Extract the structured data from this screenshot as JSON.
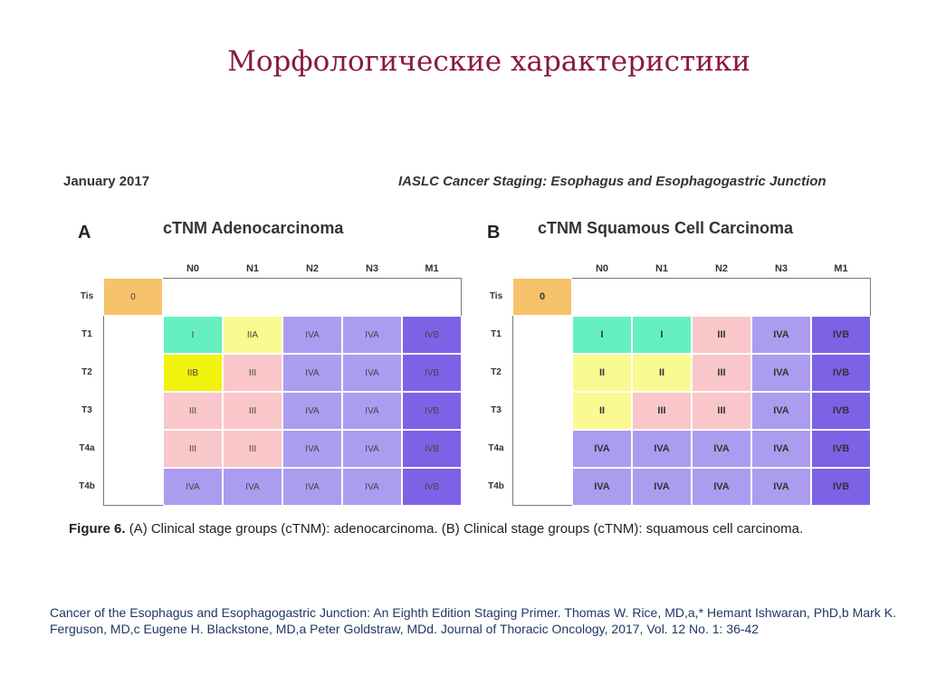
{
  "slide": {
    "title": "Морфологические характеристики"
  },
  "figure": {
    "header_left": "January 2017",
    "header_right": "IASLC Cancer Staging: Esophagus and Esophagogastric Junction",
    "caption_label": "Figure 6.",
    "caption_text": "(A) Clinical stage groups (cTNM): adenocarcinoma. (B) Clinical stage groups (cTNM): squamous cell carcinoma.",
    "colors": {
      "0": "#f6c26b",
      "I": "#66f0bf",
      "IIA": "#fafa92",
      "II": "#fafa92",
      "IIB": "#f2f20f",
      "III": "#f9c7c9",
      "IVA": "#ac9cf0",
      "IVB": "#7e62e6"
    },
    "columns": [
      "N0",
      "N1",
      "N2",
      "N3",
      "M1"
    ],
    "rows": [
      "T1",
      "T2",
      "T3",
      "T4a",
      "T4b"
    ],
    "tis_label": "Tis",
    "panels": [
      {
        "letter": "A",
        "title": "cTNM Adenocarcinoma",
        "tis_value": "0",
        "cells": [
          [
            "I",
            "IIA",
            "IVA",
            "IVA",
            "IVB"
          ],
          [
            "IIB",
            "III",
            "IVA",
            "IVA",
            "IVB"
          ],
          [
            "III",
            "III",
            "IVA",
            "IVA",
            "IVB"
          ],
          [
            "III",
            "III",
            "IVA",
            "IVA",
            "IVB"
          ],
          [
            "IVA",
            "IVA",
            "IVA",
            "IVA",
            "IVB"
          ]
        ]
      },
      {
        "letter": "B",
        "title": "cTNM Squamous Cell Carcinoma",
        "tis_value": "0",
        "cells": [
          [
            "I",
            "I",
            "III",
            "IVA",
            "IVB"
          ],
          [
            "II",
            "II",
            "III",
            "IVA",
            "IVB"
          ],
          [
            "II",
            "III",
            "III",
            "IVA",
            "IVB"
          ],
          [
            "IVA",
            "IVA",
            "IVA",
            "IVA",
            "IVB"
          ],
          [
            "IVA",
            "IVA",
            "IVA",
            "IVA",
            "IVB"
          ]
        ]
      }
    ]
  },
  "citation": "Cancer of the Esophagus and Esophagogastric Junction: An Eighth Edition Staging Primer. Thomas W. Rice, MD,a,* Hemant Ishwaran, PhD,b Mark K. Ferguson, MD,c Eugene H. Blackstone, MD,a Peter Goldstraw, MDd.  Journal of Thoracic Oncology, 2017, Vol. 12 No. 1: 36-42"
}
